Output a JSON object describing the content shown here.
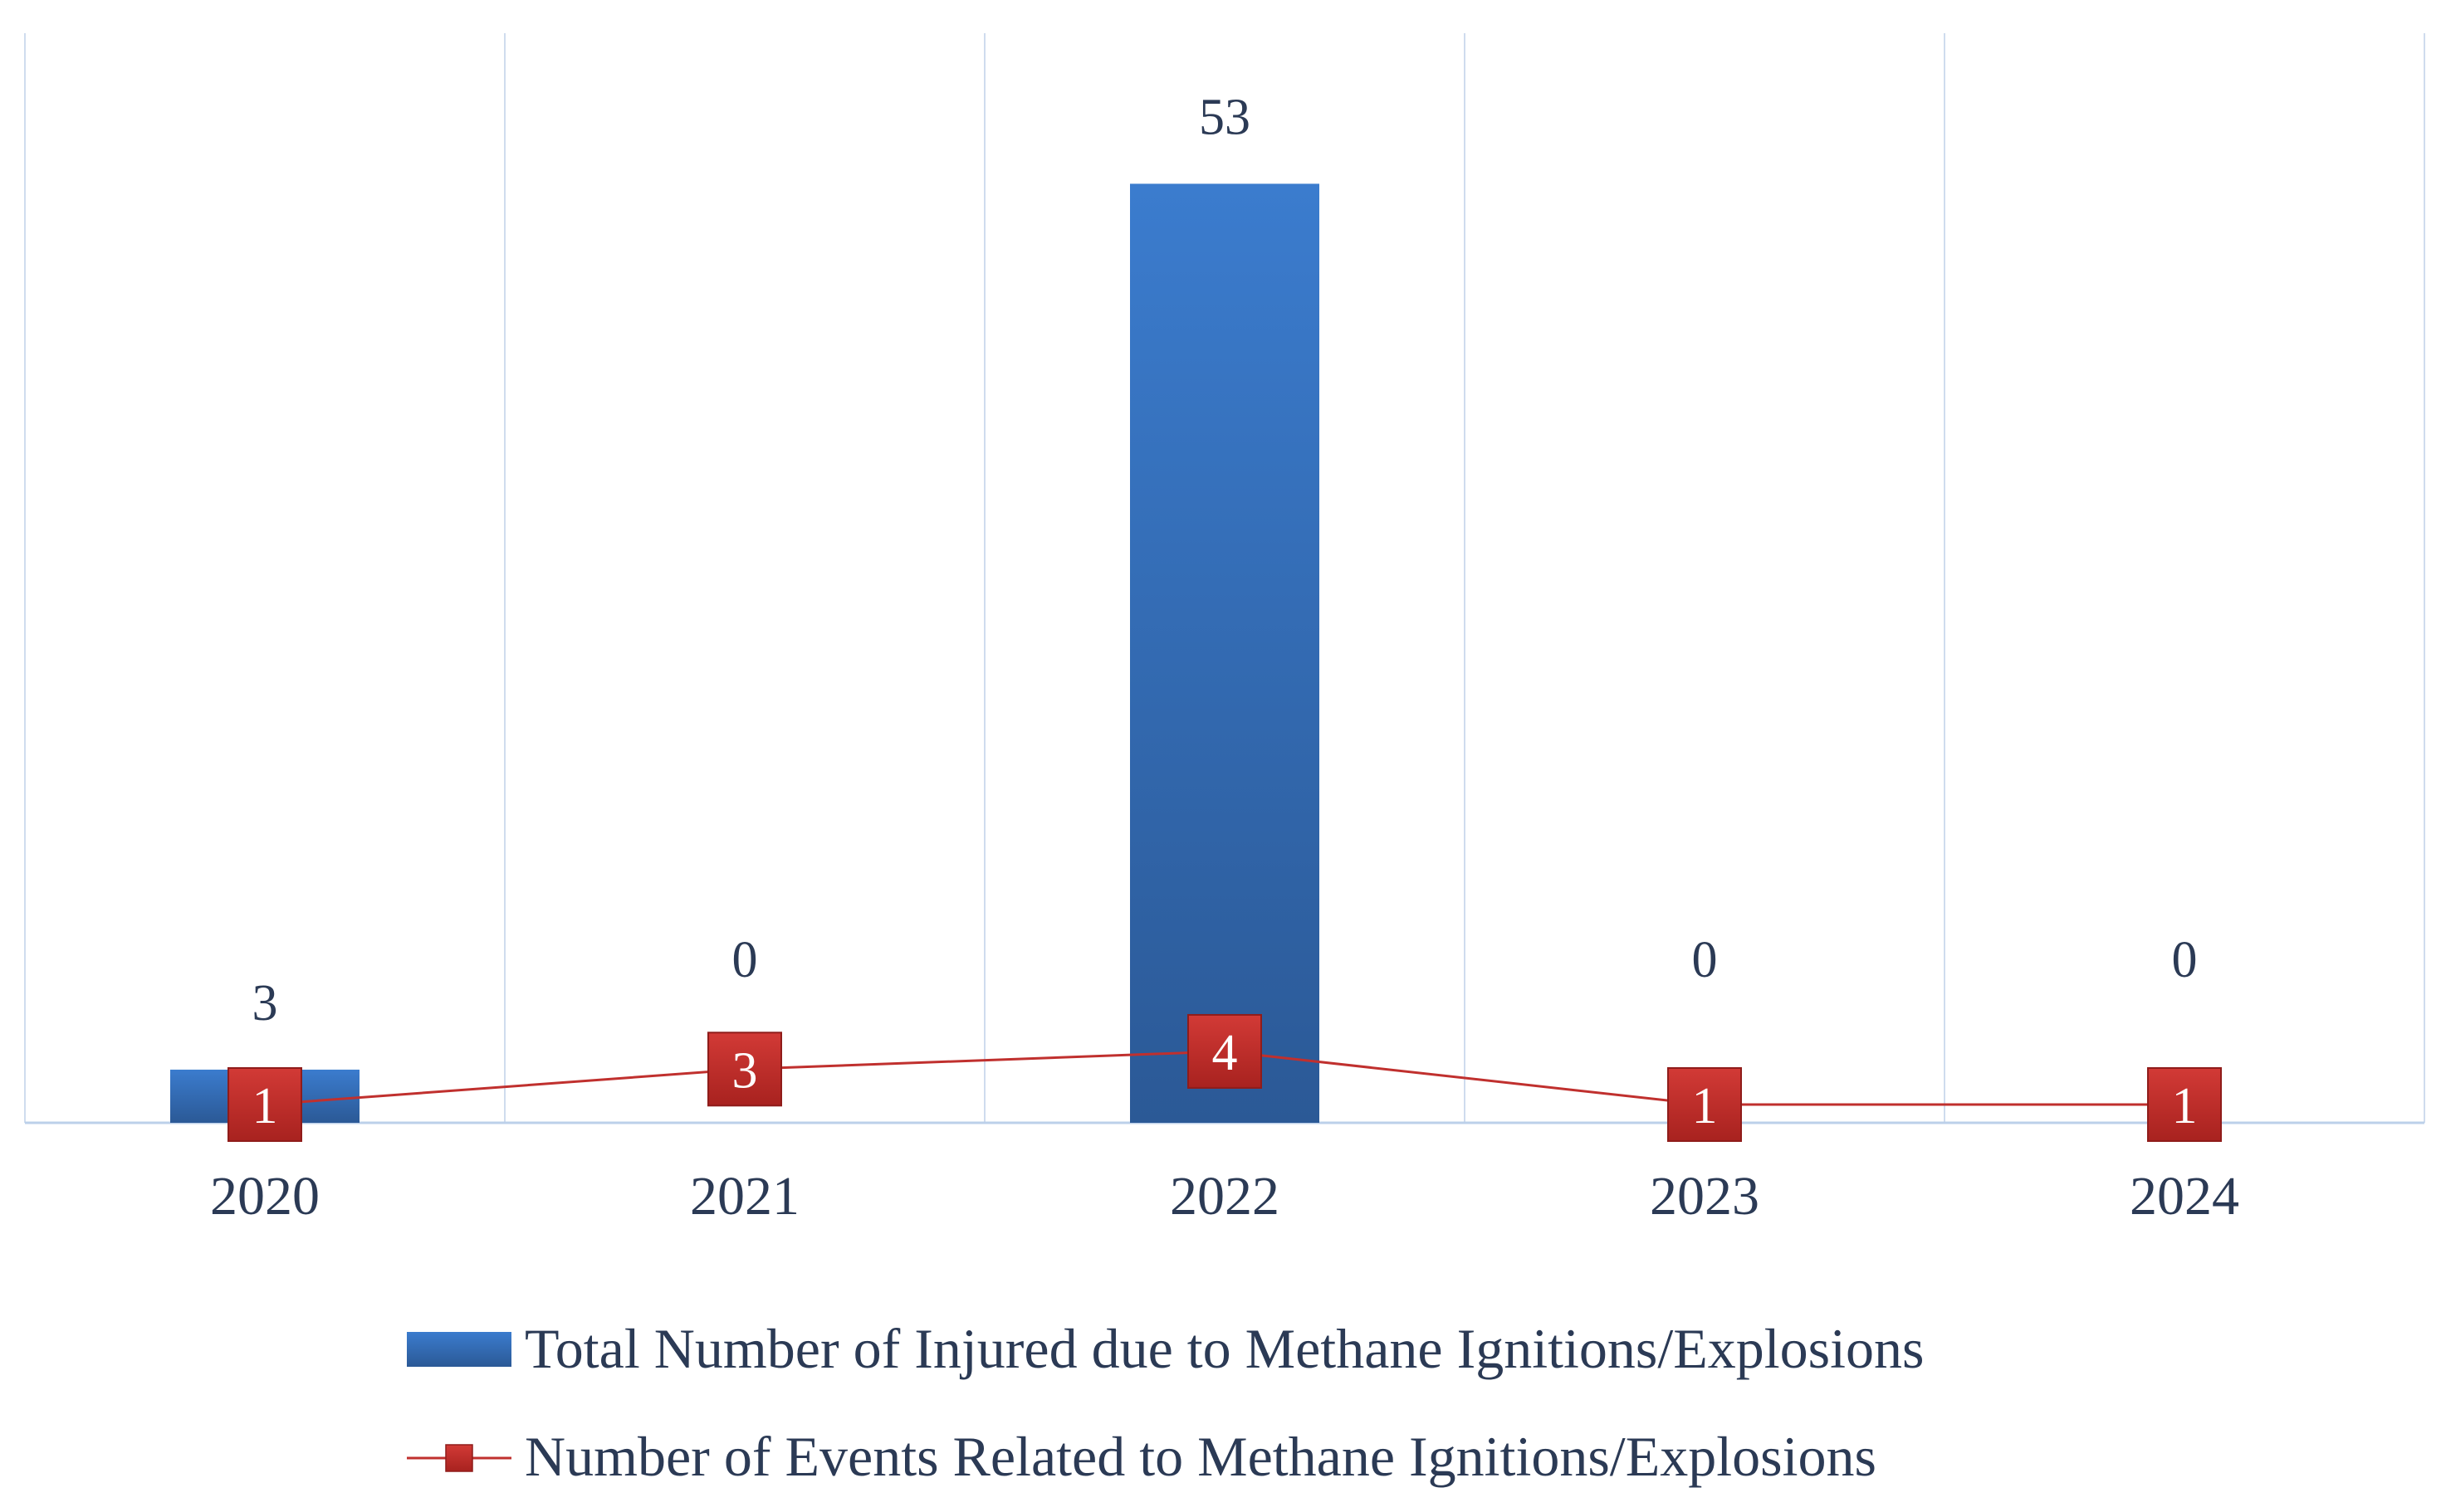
{
  "chart_data": {
    "type": "bar",
    "title": "",
    "xlabel": "",
    "ylabel": "",
    "categories": [
      "2020",
      "2021",
      "2022",
      "2023",
      "2024"
    ],
    "grid": "vertical",
    "legend_position": "bottom",
    "series": [
      {
        "name": "Total Number of Injured due to Methane Ignitions/Explosions",
        "type": "bar",
        "color": "#3a78c6",
        "color_dark": "#2c5a98",
        "values": [
          3,
          0,
          53,
          0,
          0
        ],
        "labels": [
          "3",
          "0",
          "53",
          "0",
          "0"
        ]
      },
      {
        "name": "Number of Events Related to Methane Ignitions/Explosions",
        "type": "line",
        "color": "#c0302e",
        "values": [
          1,
          3,
          4,
          1,
          1
        ],
        "labels": [
          "1",
          "3",
          "4",
          "1",
          "1"
        ]
      }
    ],
    "ylim": [
      0,
      58
    ]
  }
}
